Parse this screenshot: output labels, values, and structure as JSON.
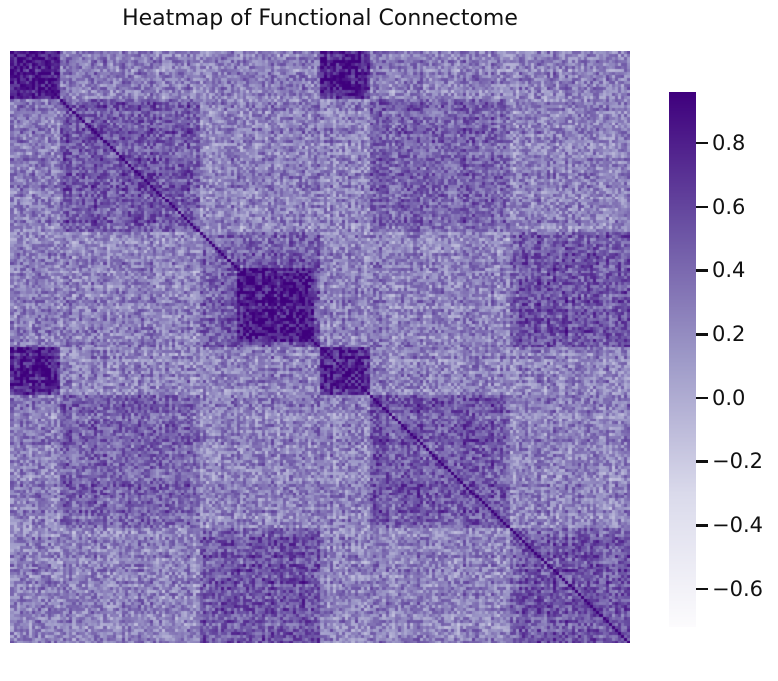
{
  "chart_data": {
    "type": "heatmap",
    "title": "Heatmap of Functional Connectome",
    "xlabel": "",
    "ylabel": "",
    "n_rows": 200,
    "n_cols": 200,
    "value_range": [
      -0.72,
      0.96
    ],
    "colormap": "Purples",
    "colormap_stops": [
      "#fcfbfd",
      "#dadaeb",
      "#9e9ac8",
      "#6a51a3",
      "#3f007d"
    ],
    "diagonal_value": 0.96,
    "background_mean": 0.25,
    "blocks": [
      {
        "rows": [
          0,
          15
        ],
        "cols": [
          0,
          15
        ],
        "mean": 0.78
      },
      {
        "rows": [
          0,
          15
        ],
        "cols": [
          100,
          115
        ],
        "mean": 0.78
      },
      {
        "rows": [
          100,
          115
        ],
        "cols": [
          0,
          15
        ],
        "mean": 0.78
      },
      {
        "rows": [
          100,
          115
        ],
        "cols": [
          100,
          115
        ],
        "mean": 0.78
      },
      {
        "rows": [
          16,
          60
        ],
        "cols": [
          16,
          60
        ],
        "mean": 0.48
      },
      {
        "rows": [
          116,
          160
        ],
        "cols": [
          116,
          160
        ],
        "mean": 0.48
      },
      {
        "rows": [
          16,
          60
        ],
        "cols": [
          116,
          160
        ],
        "mean": 0.42
      },
      {
        "rows": [
          116,
          160
        ],
        "cols": [
          16,
          60
        ],
        "mean": 0.42
      },
      {
        "rows": [
          61,
          99
        ],
        "cols": [
          61,
          99
        ],
        "mean": 0.45
      },
      {
        "rows": [
          73,
          97
        ],
        "cols": [
          73,
          97
        ],
        "mean": 0.82
      },
      {
        "rows": [
          161,
          199
        ],
        "cols": [
          161,
          199
        ],
        "mean": 0.5
      },
      {
        "rows": [
          61,
          99
        ],
        "cols": [
          161,
          199
        ],
        "mean": 0.5
      },
      {
        "rows": [
          161,
          199
        ],
        "cols": [
          61,
          99
        ],
        "mean": 0.5
      }
    ],
    "colorbar": {
      "ticks": [
        0.8,
        0.6,
        0.4,
        0.2,
        0.0,
        -0.2,
        -0.4,
        -0.6
      ],
      "tick_labels": [
        "0.8",
        "0.6",
        "0.4",
        "0.2",
        "0.0",
        "−0.2",
        "−0.4",
        "−0.6"
      ]
    }
  }
}
